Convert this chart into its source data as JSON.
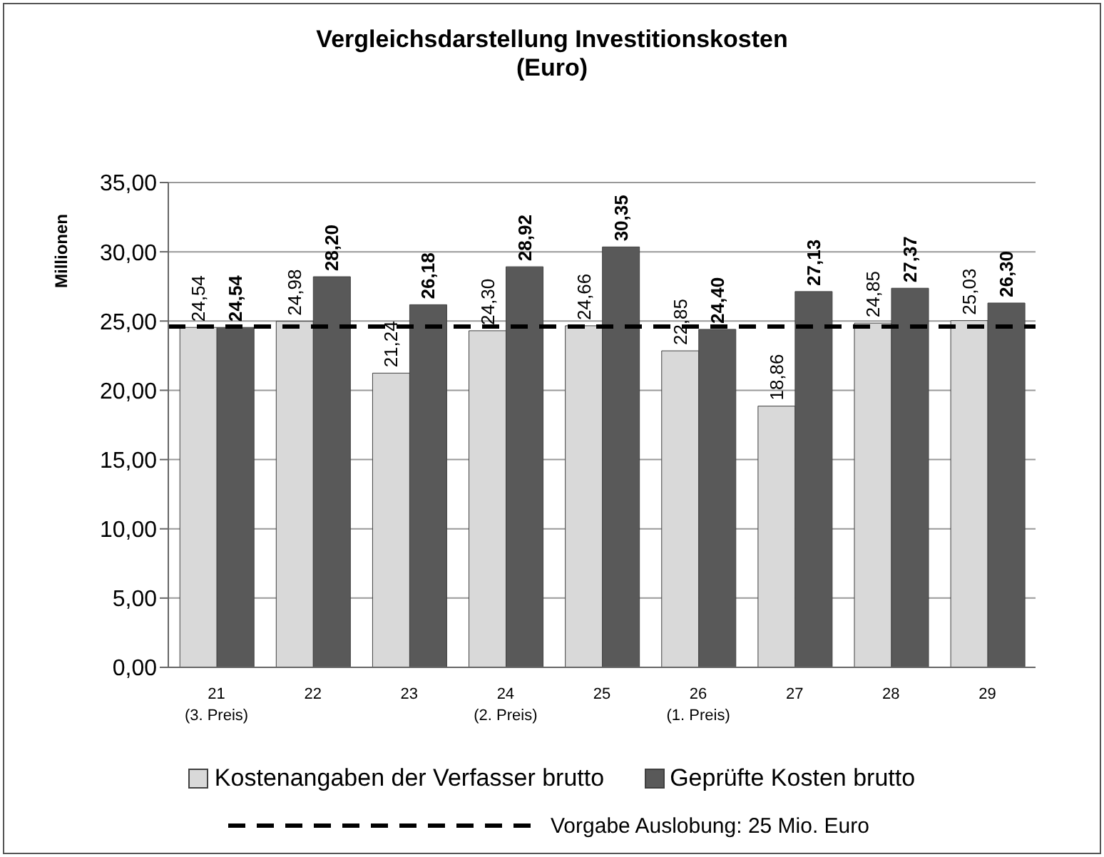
{
  "chart_data": {
    "type": "bar",
    "title": "Vergleichsdarstellung Investitionskosten",
    "subtitle": "(Euro)",
    "ylabel": "Millionen",
    "categories": [
      "21\n(3. Preis)",
      "22",
      "23",
      "24\n(2. Preis)",
      "25",
      "26\n(1. Preis)",
      "27",
      "28",
      "29"
    ],
    "series": [
      {
        "name": "Kostenangaben der Verfasser brutto",
        "color": "#d9d9d9",
        "values": [
          24.54,
          24.98,
          21.24,
          24.3,
          24.66,
          22.85,
          18.86,
          24.85,
          25.03
        ],
        "value_labels": [
          "24,54",
          "24,98",
          "21,24",
          "24,30",
          "24,66",
          "22,85",
          "18,86",
          "24,85",
          "25,03"
        ]
      },
      {
        "name": "Geprüfte Kosten brutto",
        "color": "#595959",
        "values": [
          24.54,
          28.2,
          26.18,
          28.92,
          30.35,
          24.4,
          27.13,
          27.37,
          26.3
        ],
        "value_labels": [
          "24,54",
          "28,20",
          "26,18",
          "28,92",
          "30,35",
          "24,40",
          "27,13",
          "27,37",
          "26,30"
        ]
      }
    ],
    "ylim": [
      0,
      35
    ],
    "yticks": [
      {
        "value": 0,
        "label": "0,00"
      },
      {
        "value": 5,
        "label": "5,00"
      },
      {
        "value": 10,
        "label": "10,00"
      },
      {
        "value": 15,
        "label": "15,00"
      },
      {
        "value": 20,
        "label": "20,00"
      },
      {
        "value": 25,
        "label": "25,00"
      },
      {
        "value": 30,
        "label": "30,00"
      },
      {
        "value": 35,
        "label": "35,00"
      }
    ],
    "grid": "y",
    "legend": "bottom",
    "ref_lines": [
      {
        "axis": "y",
        "value": 24.6,
        "label": "Vorgabe Auslobung: 25 Mio. Euro",
        "color": "#000000",
        "line_style": "dashed"
      }
    ]
  }
}
